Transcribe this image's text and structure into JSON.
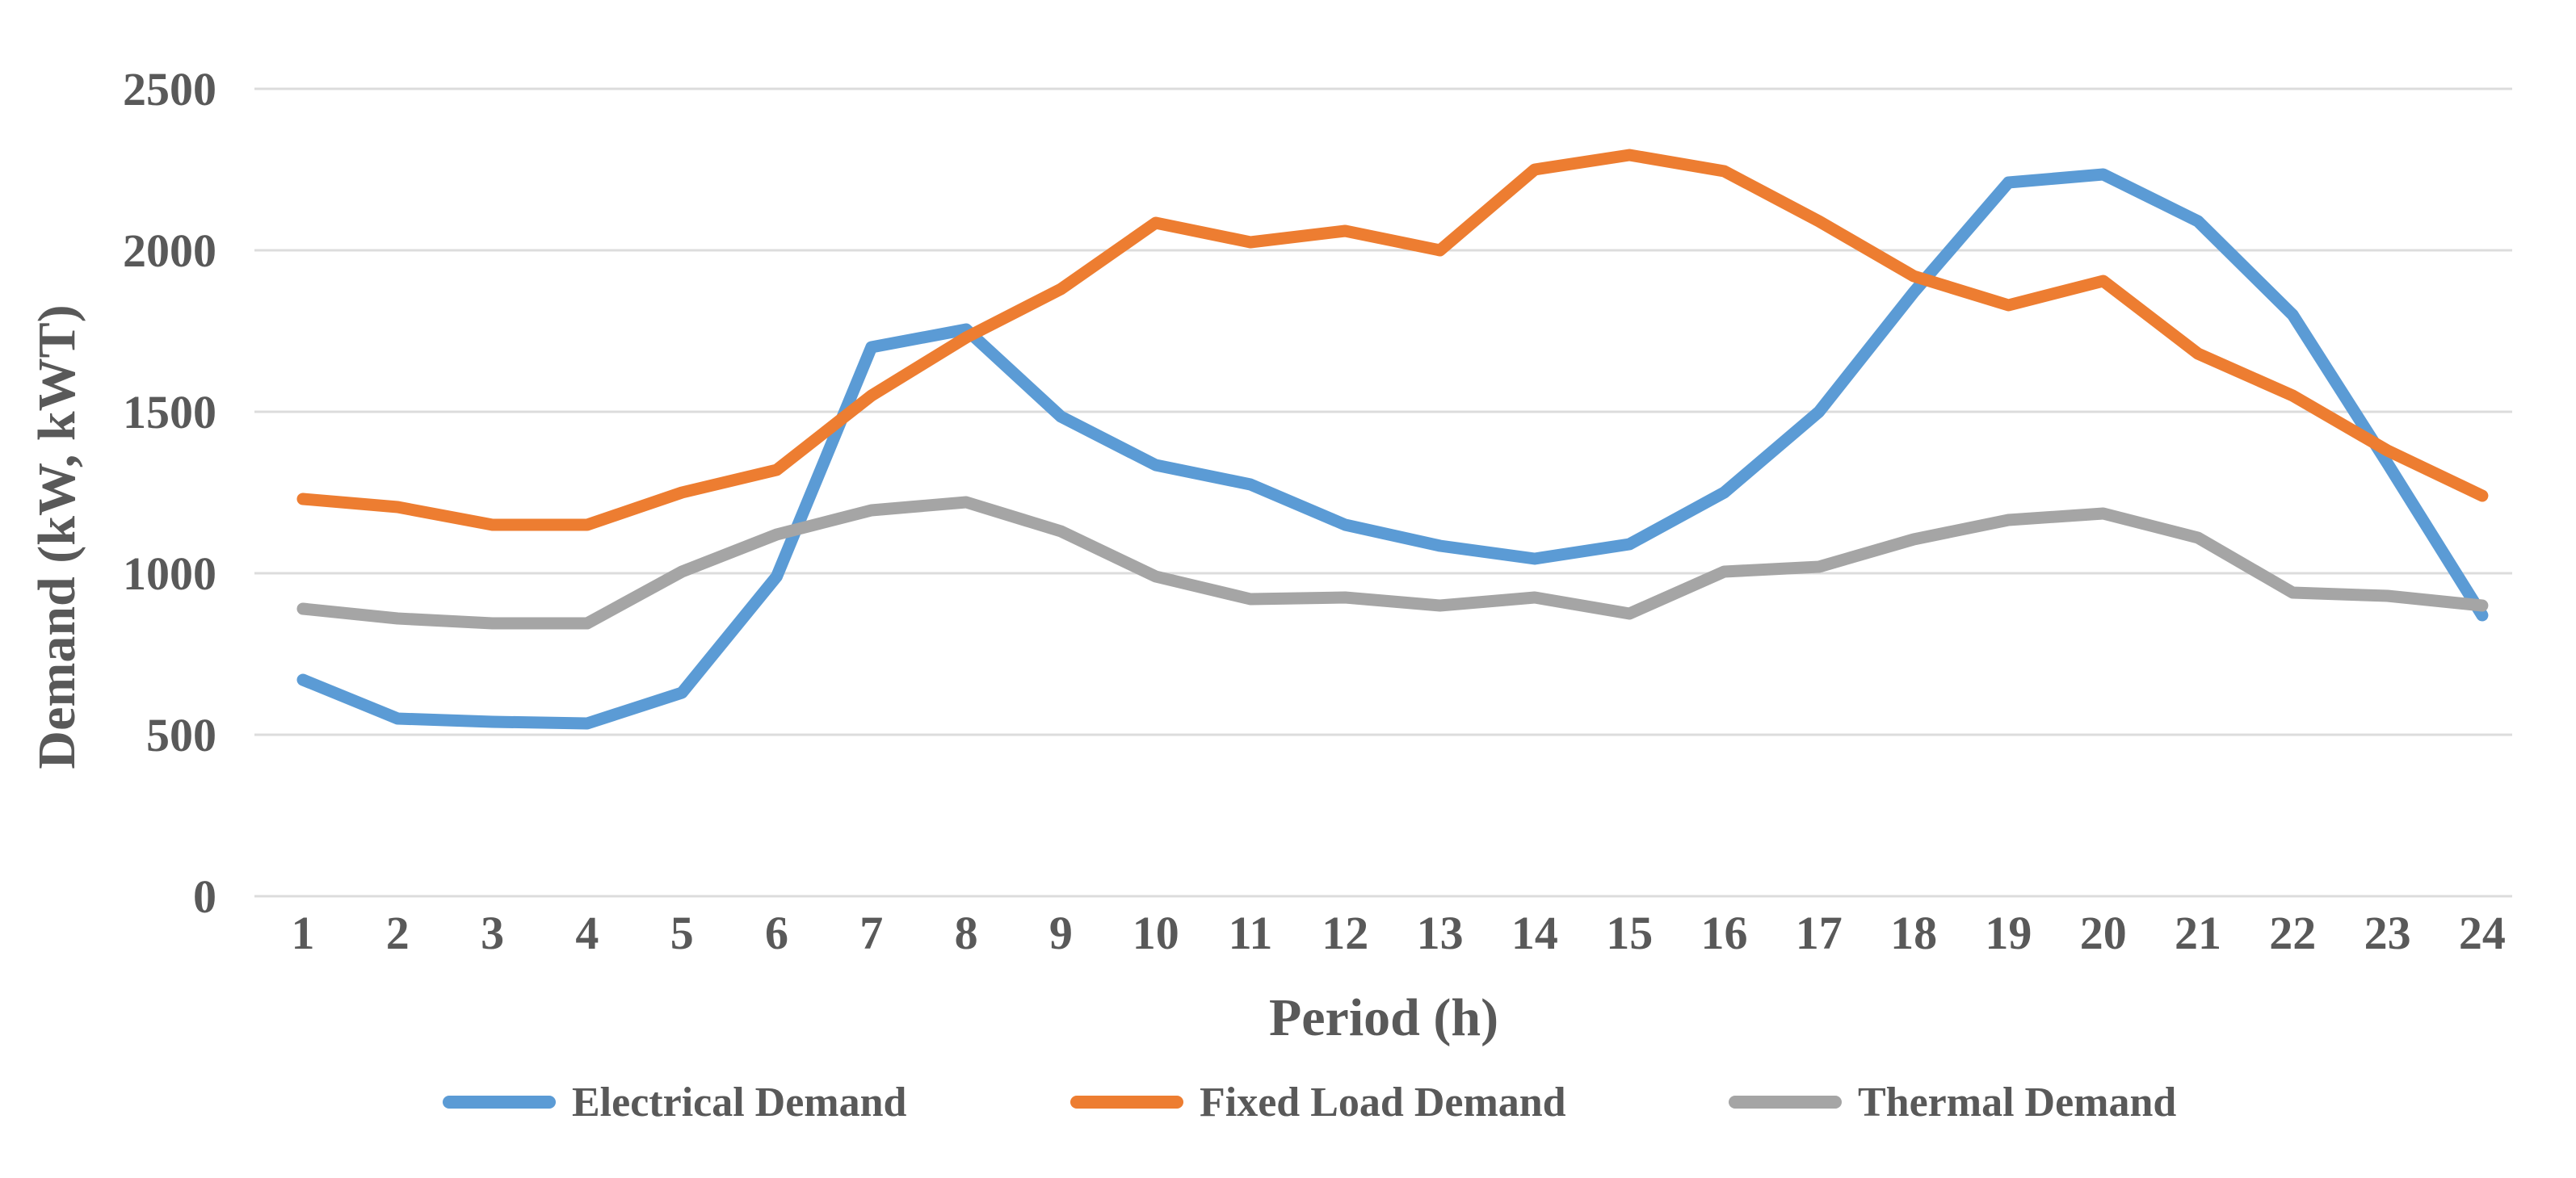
{
  "chart_data": {
    "type": "line",
    "title": "",
    "xlabel": "Period (h)",
    "ylabel": "Demand (kW, kWT)",
    "x": [
      1,
      2,
      3,
      4,
      5,
      6,
      7,
      8,
      9,
      10,
      11,
      12,
      13,
      14,
      15,
      16,
      17,
      18,
      19,
      20,
      21,
      22,
      23,
      24
    ],
    "y_ticks": [
      0,
      500,
      1000,
      1500,
      2000,
      2500
    ],
    "ylim": [
      0,
      2500
    ],
    "grid": "horizontal-only",
    "legend_position": "bottom",
    "background_color": "#FFFFFF",
    "gridline_color": "#DCDCDC",
    "text_color": "#595959",
    "series": [
      {
        "name": "Electrical Demand",
        "color": "#5B9BD5",
        "values": [
          670,
          550,
          540,
          535,
          630,
          990,
          1700,
          1755,
          1485,
          1335,
          1275,
          1150,
          1085,
          1045,
          1090,
          1250,
          1500,
          1870,
          2210,
          2235,
          2090,
          1800,
          1340,
          870
        ]
      },
      {
        "name": "Fixed Load Demand",
        "color": "#ED7D31",
        "values": [
          1230,
          1205,
          1150,
          1150,
          1250,
          1320,
          1550,
          1730,
          1880,
          2085,
          2025,
          2060,
          2000,
          2250,
          2295,
          2245,
          2090,
          1920,
          1830,
          1905,
          1680,
          1550,
          1380,
          1240
        ]
      },
      {
        "name": "Thermal Demand",
        "color": "#A5A5A5",
        "values": [
          890,
          860,
          845,
          845,
          1005,
          1120,
          1195,
          1220,
          1130,
          990,
          920,
          925,
          900,
          925,
          875,
          1005,
          1020,
          1105,
          1165,
          1185,
          1110,
          940,
          930,
          900
        ]
      }
    ]
  }
}
